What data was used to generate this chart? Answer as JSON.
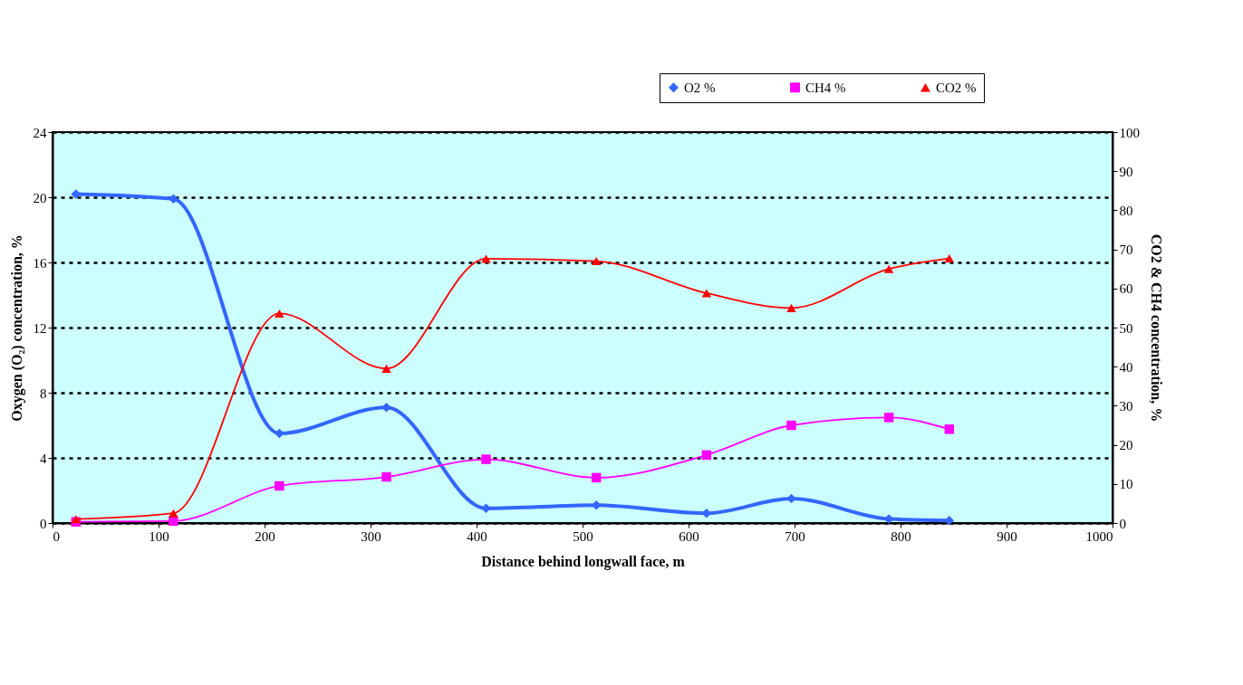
{
  "chart_data": {
    "type": "line",
    "xlabel": "Distance behind longwall face, m",
    "ylabel": "Oxygen (O₂) concentration, %",
    "y2label": "CO2 & CH4 concentration, %",
    "x": [
      22,
      114,
      214,
      315,
      409,
      513,
      617,
      697,
      789,
      846
    ],
    "series": [
      {
        "name": "O2 %",
        "color": "#3366ff",
        "marker": "diamond",
        "values": [
          20.2,
          19.9,
          5.5,
          7.1,
          0.9,
          1.1,
          0.6,
          1.5,
          0.25,
          0.15
        ]
      },
      {
        "name": "CH4 %",
        "color": "#ff00ff",
        "marker": "square",
        "axis": "y2",
        "values": [
          0.3,
          0.5,
          9.5,
          11.8,
          16.3,
          11.6,
          17.4,
          25,
          27,
          24
        ]
      },
      {
        "name": "CO2 %",
        "color": "#ff0000",
        "marker": "triangle",
        "axis": "y2",
        "values": [
          1,
          2.5,
          53.6,
          39.5,
          67.6,
          67,
          58.8,
          55,
          65,
          67.7
        ]
      }
    ],
    "xlim": [
      0,
      1000
    ],
    "xticks": [
      0,
      100,
      200,
      300,
      400,
      500,
      600,
      700,
      800,
      900,
      1000
    ],
    "ylim": [
      0,
      24
    ],
    "yticks": [
      0,
      4,
      8,
      12,
      16,
      20,
      24
    ],
    "y2lim": [
      0,
      100
    ],
    "y2ticks": [
      0,
      10,
      20,
      30,
      40,
      50,
      60,
      70,
      80,
      90,
      100
    ],
    "grid": "y",
    "legend": "top right",
    "line_style": "solid"
  }
}
